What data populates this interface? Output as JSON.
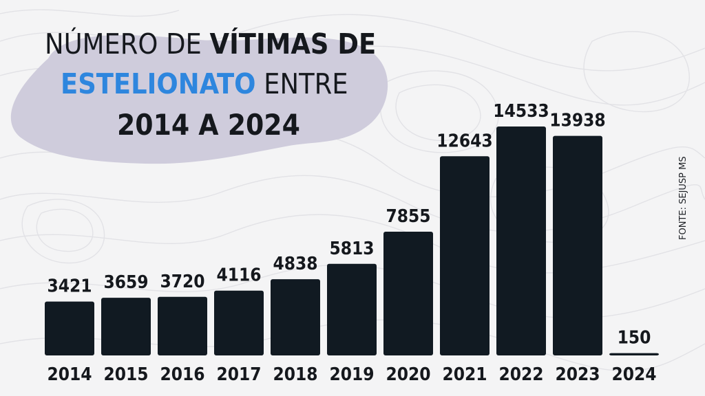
{
  "title": {
    "line1_part1": "NÚMERO DE ",
    "line1_part2": "VÍTIMAS DE",
    "line2_part1": "ESTELIONATO",
    "line2_part2": " ENTRE",
    "line3": "2014 A 2024"
  },
  "source": "FONTE: SEJUSP MS",
  "colors": {
    "bar": "#111a22",
    "accent": "#2e86de",
    "blob": "#cfccdc",
    "text": "#15181d"
  },
  "chart_data": {
    "type": "bar",
    "categories": [
      "2014",
      "2015",
      "2016",
      "2017",
      "2018",
      "2019",
      "2020",
      "2021",
      "2022",
      "2023",
      "2024"
    ],
    "values": [
      3421,
      3659,
      3720,
      4116,
      4838,
      5813,
      7855,
      12643,
      14533,
      13938,
      150
    ],
    "value_labels": [
      "3421",
      "3659",
      "3720",
      "4116",
      "4838",
      "5813",
      "7855",
      "12643",
      "14533",
      "13938",
      "150"
    ],
    "title": "NÚMERO DE VÍTIMAS DE ESTELIONATO ENTRE 2014 A 2024",
    "xlabel": "",
    "ylabel": "",
    "ylim": [
      0,
      14533
    ],
    "grid": false,
    "legend": "none"
  }
}
